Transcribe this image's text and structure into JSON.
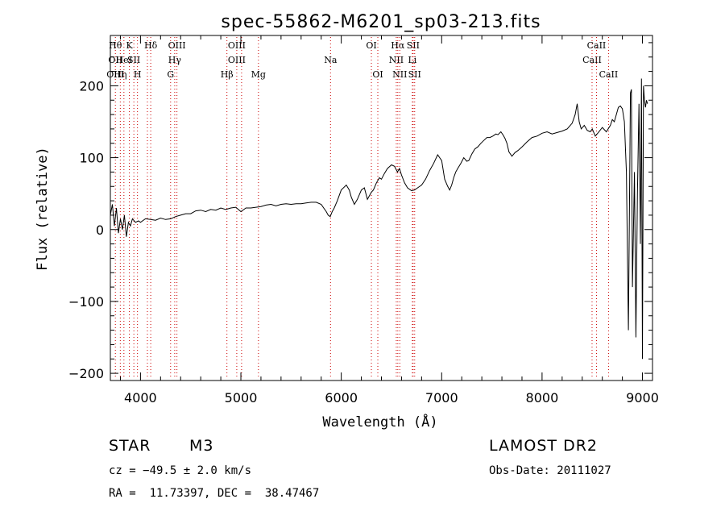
{
  "chart_data": {
    "type": "line",
    "title": "spec-55862-M6201_sp03-213.fits",
    "xlabel": "Wavelength (Å)",
    "ylabel": "Flux (relative)",
    "xlim": [
      3700,
      9100
    ],
    "ylim": [
      -210,
      270
    ],
    "xticks": [
      4000,
      5000,
      6000,
      7000,
      8000,
      9000
    ],
    "yticks": [
      -200,
      -100,
      0,
      100,
      200
    ],
    "grid": false,
    "line_color": "#000000",
    "marker_line_color": "#cc0000",
    "series": [
      {
        "x": [
          3700,
          3720,
          3740,
          3760,
          3780,
          3800,
          3820,
          3840,
          3860,
          3880,
          3900,
          3920,
          3950,
          3980,
          4000,
          4050,
          4100,
          4150,
          4200,
          4250,
          4300,
          4350,
          4400,
          4450,
          4500,
          4550,
          4600,
          4650,
          4700,
          4750,
          4800,
          4850,
          4900,
          4950,
          5000,
          5050,
          5100,
          5150,
          5200,
          5250,
          5300,
          5350,
          5400,
          5450,
          5500,
          5550,
          5600,
          5650,
          5700,
          5750,
          5800,
          5850,
          5870,
          5890,
          5910,
          5930,
          5960,
          6000,
          6050,
          6080,
          6100,
          6130,
          6160,
          6200,
          6230,
          6260,
          6300,
          6320,
          6350,
          6380,
          6400,
          6430,
          6460,
          6500,
          6530,
          6560,
          6580,
          6600,
          6630,
          6660,
          6700,
          6730,
          6760,
          6800,
          6840,
          6880,
          6920,
          6960,
          7000,
          7030,
          7060,
          7080,
          7100,
          7120,
          7140,
          7160,
          7190,
          7220,
          7250,
          7270,
          7300,
          7330,
          7360,
          7390,
          7420,
          7450,
          7480,
          7510,
          7540,
          7560,
          7590,
          7610,
          7630,
          7650,
          7670,
          7700,
          7730,
          7760,
          7800,
          7850,
          7900,
          7950,
          8000,
          8050,
          8100,
          8150,
          8200,
          8250,
          8300,
          8330,
          8350,
          8370,
          8390,
          8420,
          8450,
          8480,
          8500,
          8530,
          8560,
          8600,
          8640,
          8680,
          8700,
          8720,
          8740,
          8760,
          8780,
          8800,
          8820,
          8840,
          8860,
          8880,
          8890,
          8900,
          8920,
          8935,
          8950,
          8965,
          8980,
          8990,
          9000,
          9010,
          9020,
          9030,
          9040,
          9050
        ],
        "y": [
          20,
          35,
          5,
          30,
          -5,
          15,
          0,
          20,
          -10,
          10,
          5,
          15,
          10,
          12,
          10,
          15,
          14,
          13,
          16,
          14,
          15,
          18,
          20,
          22,
          22,
          26,
          27,
          25,
          28,
          27,
          30,
          28,
          30,
          31,
          25,
          30,
          30,
          31,
          32,
          34,
          35,
          33,
          35,
          36,
          35,
          36,
          36,
          37,
          38,
          38,
          35,
          25,
          20,
          18,
          25,
          30,
          40,
          55,
          62,
          55,
          45,
          35,
          42,
          55,
          58,
          42,
          52,
          55,
          65,
          72,
          70,
          78,
          85,
          90,
          88,
          80,
          85,
          76,
          65,
          58,
          54,
          55,
          58,
          62,
          70,
          82,
          92,
          104,
          96,
          70,
          60,
          55,
          62,
          72,
          80,
          85,
          92,
          100,
          95,
          96,
          105,
          112,
          115,
          120,
          124,
          128,
          128,
          130,
          133,
          132,
          136,
          132,
          127,
          120,
          108,
          102,
          107,
          110,
          115,
          122,
          128,
          130,
          134,
          136,
          133,
          135,
          137,
          140,
          148,
          160,
          175,
          150,
          140,
          145,
          138,
          136,
          140,
          130,
          135,
          142,
          136,
          145,
          153,
          150,
          160,
          170,
          172,
          168,
          150,
          80,
          -140,
          190,
          195,
          -80,
          80,
          -150,
          50,
          175,
          -20,
          210,
          -180,
          200,
          180,
          170,
          180,
          175
        ]
      }
    ],
    "line_markers": [
      {
        "x": 3750,
        "lines": [
          "Hθ",
          "OII",
          "OIII"
        ]
      },
      {
        "x": 3799,
        "lines": [
          "",
          "",
          "Hη"
        ]
      },
      {
        "x": 3835,
        "lines": [
          "",
          "HeI",
          ""
        ]
      },
      {
        "x": 3889,
        "lines": [
          "K",
          "",
          ""
        ]
      },
      {
        "x": 3934,
        "lines": [
          "",
          "SII",
          ""
        ]
      },
      {
        "x": 3970,
        "lines": [
          "",
          "",
          "H"
        ]
      },
      {
        "x": 4069,
        "lines": [
          "",
          "",
          ""
        ]
      },
      {
        "x": 4102,
        "lines": [
          "Hδ",
          "",
          ""
        ]
      },
      {
        "x": 4300,
        "lines": [
          "",
          "",
          "G"
        ]
      },
      {
        "x": 4341,
        "lines": [
          "",
          "Hγ",
          ""
        ]
      },
      {
        "x": 4363,
        "lines": [
          "OIII",
          "",
          ""
        ]
      },
      {
        "x": 4861,
        "lines": [
          "",
          "",
          "Hβ"
        ]
      },
      {
        "x": 4959,
        "lines": [
          "OIII",
          "OIII",
          ""
        ]
      },
      {
        "x": 5007,
        "lines": [
          "",
          "",
          ""
        ]
      },
      {
        "x": 5175,
        "lines": [
          "",
          "",
          "Mg"
        ]
      },
      {
        "x": 5893,
        "lines": [
          "",
          "Na",
          ""
        ]
      },
      {
        "x": 6300,
        "lines": [
          "OI",
          "",
          ""
        ]
      },
      {
        "x": 6364,
        "lines": [
          "",
          "",
          "OI"
        ]
      },
      {
        "x": 6548,
        "lines": [
          "",
          "NII",
          ""
        ]
      },
      {
        "x": 6563,
        "lines": [
          "Hα",
          "",
          ""
        ]
      },
      {
        "x": 6583,
        "lines": [
          "",
          "",
          "NII"
        ]
      },
      {
        "x": 6708,
        "lines": [
          "",
          "Li",
          ""
        ]
      },
      {
        "x": 6716,
        "lines": [
          "SII",
          "",
          ""
        ]
      },
      {
        "x": 6731,
        "lines": [
          "",
          "",
          "SII"
        ]
      },
      {
        "x": 8498,
        "lines": [
          "",
          "CaII",
          ""
        ]
      },
      {
        "x": 8542,
        "lines": [
          "CaII",
          "",
          ""
        ]
      },
      {
        "x": 8662,
        "lines": [
          "",
          "",
          "CaII"
        ]
      }
    ]
  },
  "info": {
    "object_class": "STAR",
    "subclass": "M3",
    "survey": "LAMOST DR2",
    "velocity": "cz = −49.5 ± 2.0 km/s",
    "obs_date": "Obs-Date: 20111027",
    "coords": "RA =  11.73397, DEC =  38.47467"
  }
}
